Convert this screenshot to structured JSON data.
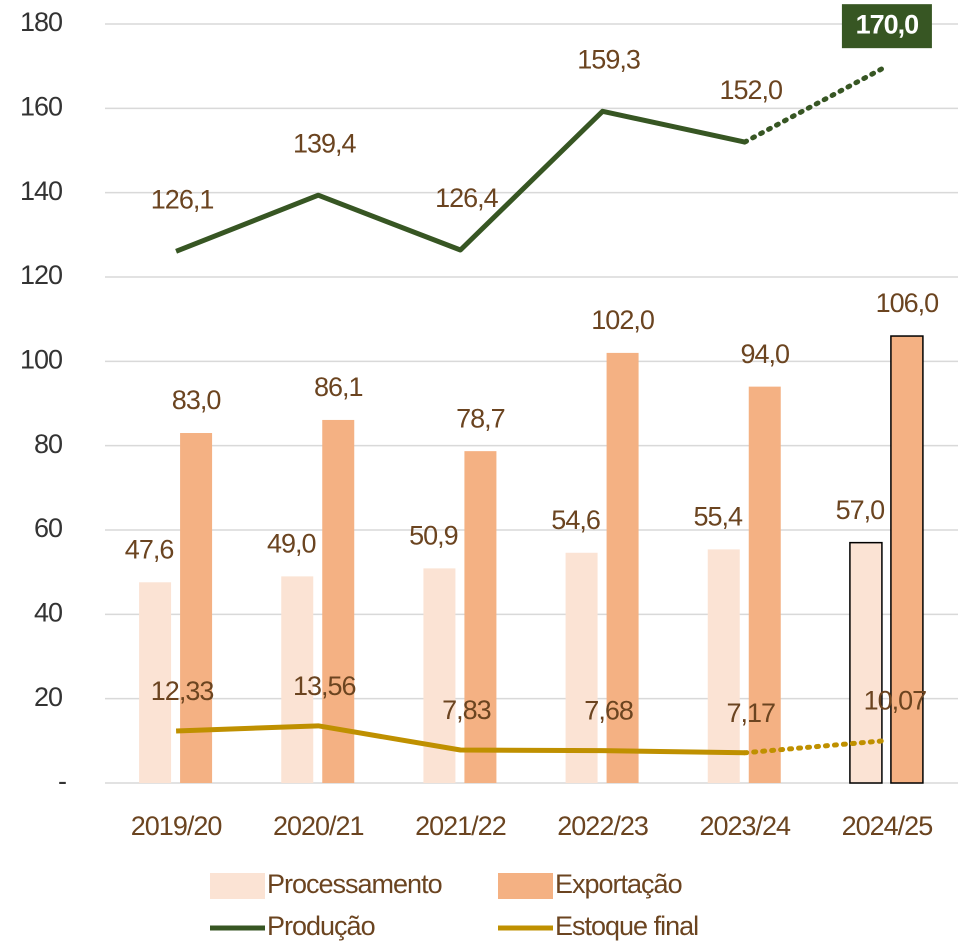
{
  "chart_data": {
    "type": "bar",
    "categories": [
      "2019/20",
      "2020/21",
      "2021/22",
      "2022/23",
      "2023/24",
      "2024/25"
    ],
    "series": [
      {
        "name": "Processamento",
        "type": "bar",
        "color": "#fbe3d4",
        "values": [
          47.6,
          49.0,
          50.9,
          54.6,
          55.4,
          57.0
        ],
        "value_labels": [
          "47,6",
          "49,0",
          "50,9",
          "54,6",
          "55,4",
          "57,0"
        ]
      },
      {
        "name": "Exportação",
        "type": "bar",
        "color": "#f4b183",
        "values": [
          83.0,
          86.1,
          78.7,
          102.0,
          94.0,
          106.0
        ],
        "value_labels": [
          "83,0",
          "86,1",
          "78,7",
          "102,0",
          "94,0",
          "106,0"
        ]
      },
      {
        "name": "Produção",
        "type": "line",
        "color": "#375623",
        "values": [
          126.1,
          139.4,
          126.4,
          159.3,
          152.0,
          170.0
        ],
        "value_labels": [
          "126,1",
          "139,4",
          "126,4",
          "159,3",
          "152,0",
          "170,0"
        ]
      },
      {
        "name": "Estoque final",
        "type": "line",
        "color": "#bf9000",
        "values": [
          12.33,
          13.56,
          7.83,
          7.68,
          7.17,
          10.07
        ],
        "value_labels": [
          "12,33",
          "13,56",
          "7,83",
          "7,68",
          "7,17",
          "10,07"
        ]
      }
    ],
    "ylim": [
      0,
      180
    ],
    "yticks": [
      {
        "value": 0,
        "label": "-"
      },
      20,
      40,
      60,
      80,
      100,
      120,
      140,
      160,
      180
    ],
    "grid": true,
    "legend": "bottom"
  }
}
